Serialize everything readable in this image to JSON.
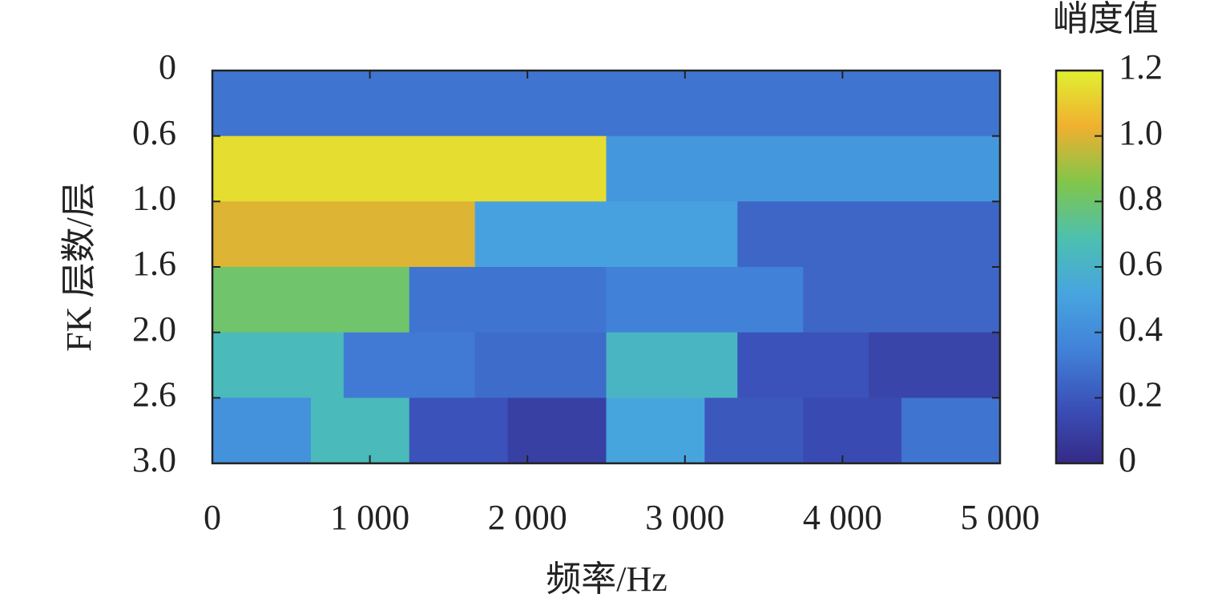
{
  "chart_data": {
    "type": "kurtogram",
    "xlabel": "频率/Hz",
    "ylabel": "FK 层数/层",
    "colorbar_label": "峭度值",
    "xlim": [
      0,
      5000
    ],
    "xticks": [
      0,
      {
        "value": 1000,
        "label": "1 000"
      },
      {
        "value": 2000,
        "label": "2 000"
      },
      {
        "value": 3000,
        "label": "3 000"
      },
      {
        "value": 4000,
        "label": "4 000"
      },
      {
        "value": 5000,
        "label": "5 000"
      }
    ],
    "ylabels": [
      "0",
      "0.6",
      "1.0",
      "1.6",
      "2.0",
      "2.6",
      "3.0"
    ],
    "rows": [
      [
        0.3
      ],
      [
        1.15,
        0.45
      ],
      [
        1.0,
        0.5,
        0.25
      ],
      [
        0.8,
        0.3,
        0.35,
        0.25
      ],
      [
        0.65,
        0.32,
        0.27,
        0.62,
        0.18,
        0.12
      ],
      [
        0.42,
        0.65,
        0.18,
        0.1,
        0.52,
        0.2,
        0.15,
        0.3
      ]
    ],
    "zlim": [
      0,
      1.2
    ],
    "zticks": [
      0,
      0.2,
      0.4,
      0.6,
      0.8,
      {
        "value": 1,
        "label": "1.0"
      },
      1.2
    ],
    "colormap": [
      "#352a87",
      "#3a50b8",
      "#4181d8",
      "#47a4e0",
      "#4cc0b0",
      "#80c64a",
      "#f0b030",
      "#e0f030"
    ]
  }
}
